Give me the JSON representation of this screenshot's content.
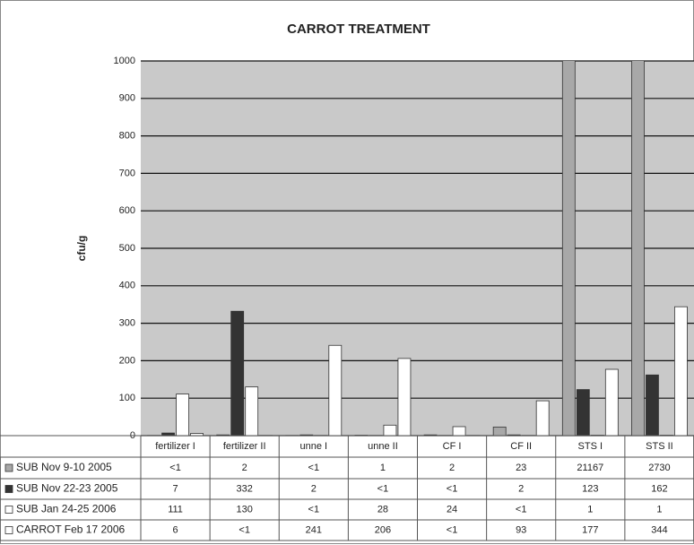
{
  "chart_data": {
    "type": "bar",
    "title": "CARROT TREATMENT",
    "y_label": "cfu/g",
    "categories": [
      "fertilizer I",
      "fertilizer II",
      "unne I",
      "unne II",
      "CF I",
      "CF II",
      "STS I",
      "STS II"
    ],
    "series": [
      {
        "name": "SUB Nov 9-10 2005",
        "color": "#a8a8a8",
        "values": [
          0.5,
          2,
          0.5,
          1,
          2,
          23,
          21167,
          2730
        ],
        "value_labels": [
          "<1",
          "2",
          "<1",
          "1",
          "2",
          "23",
          "21167",
          "2730"
        ]
      },
      {
        "name": "SUB Nov 22-23 2005",
        "color": "#333333",
        "values": [
          7,
          332,
          2,
          0.5,
          0.5,
          2,
          123,
          162
        ],
        "value_labels": [
          "7",
          "332",
          "2",
          "<1",
          "<1",
          "2",
          "123",
          "162"
        ]
      },
      {
        "name": "SUB Jan 24-25 2006",
        "color": "#ffffff",
        "values": [
          111,
          130,
          0.5,
          28,
          24,
          0.5,
          1,
          1
        ],
        "value_labels": [
          "111",
          "130",
          "<1",
          "28",
          "24",
          "<1",
          "1",
          "1"
        ]
      },
      {
        "name": "CARROT Feb 17 2006",
        "color": "#ffffff",
        "values": [
          6,
          0.5,
          241,
          206,
          0.5,
          93,
          177,
          344
        ],
        "value_labels": [
          "6",
          "<1",
          "241",
          "206",
          "<1",
          "93",
          "177",
          "344"
        ]
      }
    ],
    "ylim": [
      0,
      1000
    ],
    "yticks": [
      0,
      100,
      200,
      300,
      400,
      500,
      600,
      700,
      800,
      900,
      1000
    ],
    "grid": true
  }
}
